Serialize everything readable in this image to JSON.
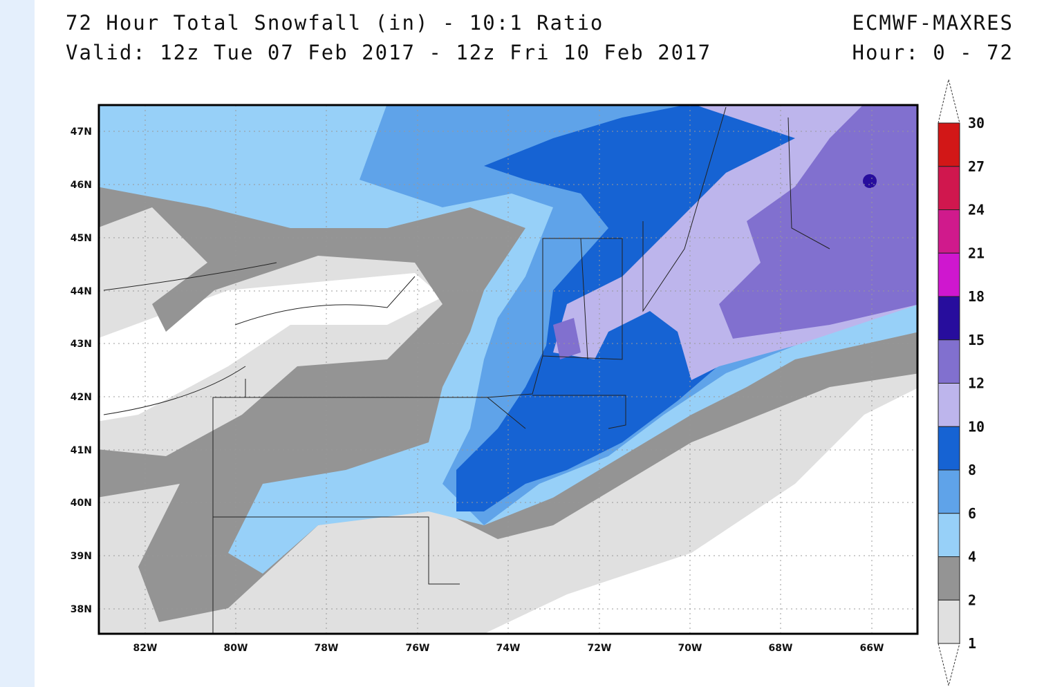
{
  "header": {
    "title": "72 Hour Total Snowfall (in) - 10:1 Ratio",
    "valid": "Valid: 12z Tue 07 Feb 2017 - 12z Fri 10 Feb 2017",
    "model": "ECMWF-MAXRES",
    "hour": "Hour: 0 - 72"
  },
  "map": {
    "lat_labels": [
      "47N",
      "46N",
      "45N",
      "44N",
      "43N",
      "42N",
      "41N",
      "40N",
      "39N",
      "38N"
    ],
    "lon_labels": [
      "82W",
      "80W",
      "78W",
      "76W",
      "74W",
      "72W",
      "70W",
      "68W",
      "66W"
    ]
  },
  "colorbar": {
    "labels": [
      "30",
      "27",
      "24",
      "21",
      "18",
      "15",
      "12",
      "10",
      "8",
      "6",
      "4",
      "2",
      "1"
    ],
    "colors": [
      "#d21717",
      "#d0174e",
      "#d01a8c",
      "#cf17cf",
      "#270d9d",
      "#8170cf",
      "#bdb5ec",
      "#1663d3",
      "#5fa3e9",
      "#97d0f8",
      "#949494",
      "#e0e0e0"
    ]
  }
}
